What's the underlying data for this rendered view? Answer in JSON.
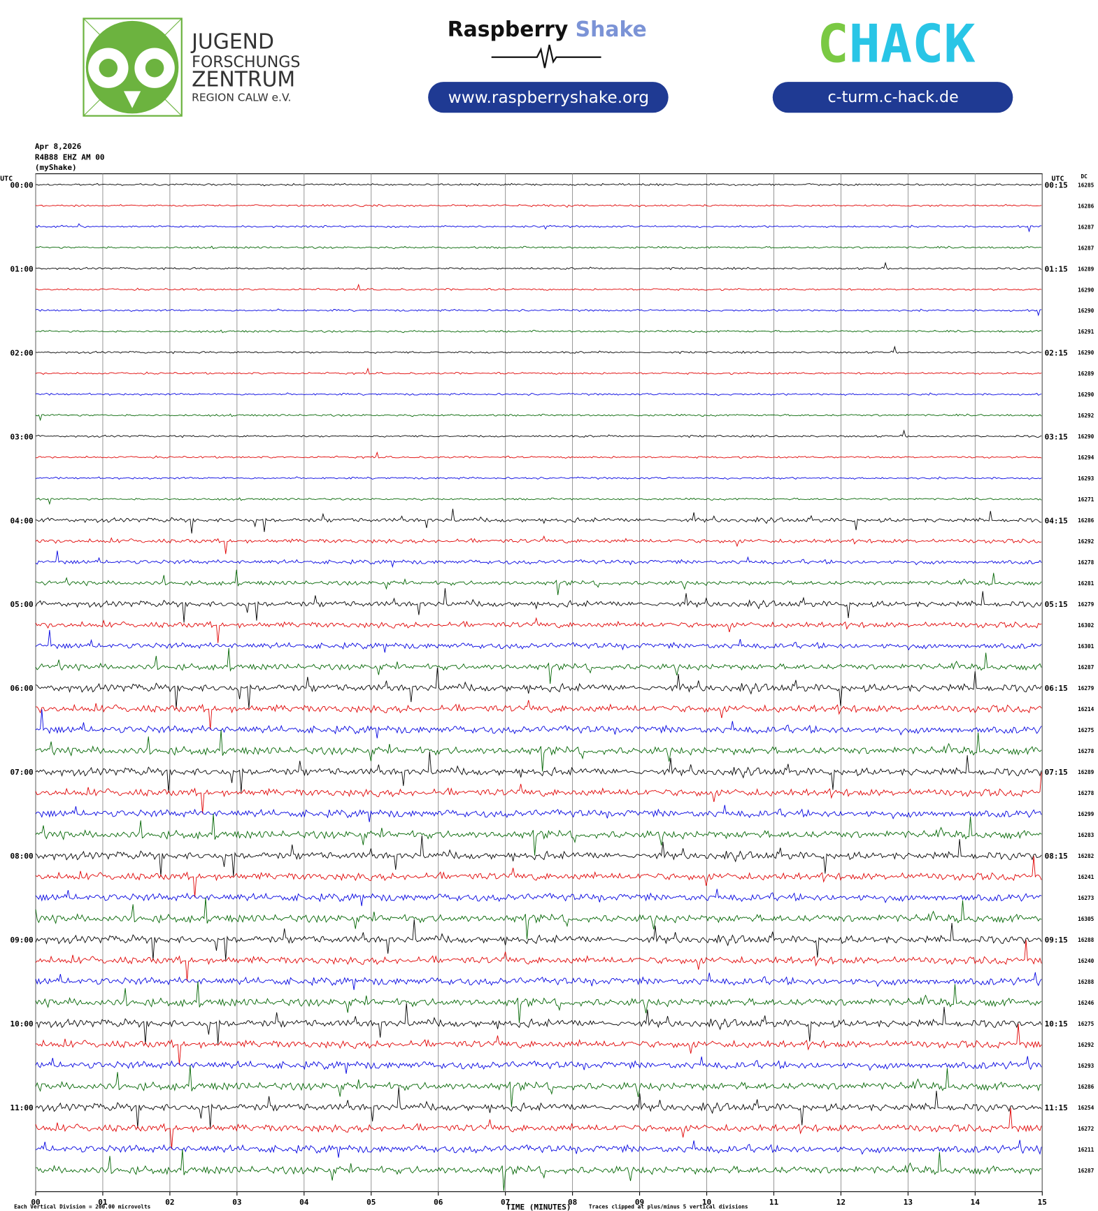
{
  "header": {
    "logo_left": {
      "lines": [
        "JUGEND",
        "FORSCHUNGS",
        "ZENTRUM",
        "REGION CALW e.V."
      ]
    },
    "logo_center": {
      "name_a": "Raspberry",
      "name_b": "Shake",
      "url": "www.raspberryshake.org"
    },
    "logo_right": {
      "name_a": "C",
      "name_b": "HACK",
      "url": "c-turm.c-hack.de"
    }
  },
  "chart_data": {
    "type": "helicorder",
    "date": "Apr 8,2026",
    "station": "R4B88 EHZ AM 00",
    "network": "(myShake)",
    "left_axis_title": "UTC",
    "right_axis_title": "UTC",
    "dc_title": "DC",
    "left_labels": [
      "00:00",
      "01:00",
      "02:00",
      "03:00",
      "04:00",
      "05:00",
      "06:00",
      "07:00",
      "08:00",
      "09:00",
      "10:00",
      "11:00"
    ],
    "right_labels": [
      "00:15",
      "01:15",
      "02:15",
      "03:15",
      "04:15",
      "05:15",
      "06:15",
      "07:15",
      "08:15",
      "09:15",
      "10:15",
      "11:15"
    ],
    "dc_values": [
      16285,
      16286,
      16287,
      16287,
      16289,
      16290,
      16290,
      16291,
      16290,
      16289,
      16290,
      16292,
      16290,
      16294,
      16293,
      16271,
      16286,
      16292,
      16278,
      16281,
      16279,
      16302,
      16301,
      16287,
      16279,
      16214,
      16275,
      16278,
      16289,
      16278,
      16299,
      16283,
      16282,
      16241,
      16273,
      16305,
      16288,
      16240,
      16288,
      16246,
      16275,
      16292,
      16293,
      16286,
      16254,
      16272,
      16211,
      16287
    ],
    "xlim": [
      0,
      15
    ],
    "xticks": [
      {
        "value": 0,
        "label": "00"
      },
      {
        "value": 1,
        "label": "01"
      },
      {
        "value": 2,
        "label": "02"
      },
      {
        "value": 3,
        "label": "03"
      },
      {
        "value": 4,
        "label": "04"
      },
      {
        "value": 5,
        "label": "05"
      },
      {
        "value": 6,
        "label": "06"
      },
      {
        "value": 7,
        "label": "07"
      },
      {
        "value": 8,
        "label": "08"
      },
      {
        "value": 9,
        "label": "09"
      },
      {
        "value": 10,
        "label": "10"
      },
      {
        "value": 11,
        "label": "11"
      },
      {
        "value": 12,
        "label": "12"
      },
      {
        "value": 13,
        "label": "13"
      },
      {
        "value": 14,
        "label": "14"
      },
      {
        "value": 15,
        "label": "15"
      }
    ],
    "grid": true,
    "xlabel": "TIME (MINUTES)",
    "footer_left": "Each Vertical Division =  200.00 microvolts",
    "footer_right": "Traces clipped at plus/minus 5 vertical divisions",
    "colors": [
      "#000000",
      "#e00000",
      "#0000e0",
      "#006400"
    ]
  }
}
